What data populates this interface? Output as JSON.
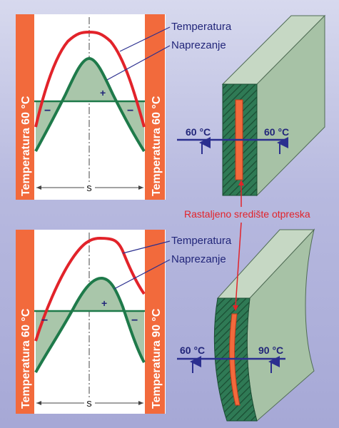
{
  "top_panel": {
    "left_bar_label": "Temperatura 60 °C",
    "right_bar_label": "Temperatura 60 °C",
    "width_symbol": "s",
    "plus_sign": "+",
    "minus_left": "−",
    "minus_right": "−",
    "legend_temperature": "Temperatura",
    "legend_stress": "Naprezanje"
  },
  "bottom_panel": {
    "left_bar_label": "Temperatura 60 °C",
    "right_bar_label": "Temperatura 90 °C",
    "width_symbol": "s",
    "plus_sign": "+",
    "minus_left": "−",
    "minus_right": "−",
    "legend_temperature": "Temperatura",
    "legend_stress": "Naprezanje"
  },
  "top_block": {
    "left_temp": "60 °C",
    "right_temp": "60 °C"
  },
  "bottom_block": {
    "left_temp": "60 °C",
    "right_temp": "90 °C"
  },
  "core_label": "Rastaljeno središte otpreska",
  "colors": {
    "bar": "#f26a3c",
    "temperature_curve": "#e2232a",
    "stress_curve": "#1e7a4a",
    "stress_fill": "#a9c6aa",
    "leader_line": "#2b2f8f",
    "arrow": "#2b2f8f",
    "label_text": "#22267a",
    "core_label": "#e2232a",
    "block_front": "#2f7a55",
    "block_side": "#a7c2a6",
    "block_top": "#c6d8c4"
  }
}
